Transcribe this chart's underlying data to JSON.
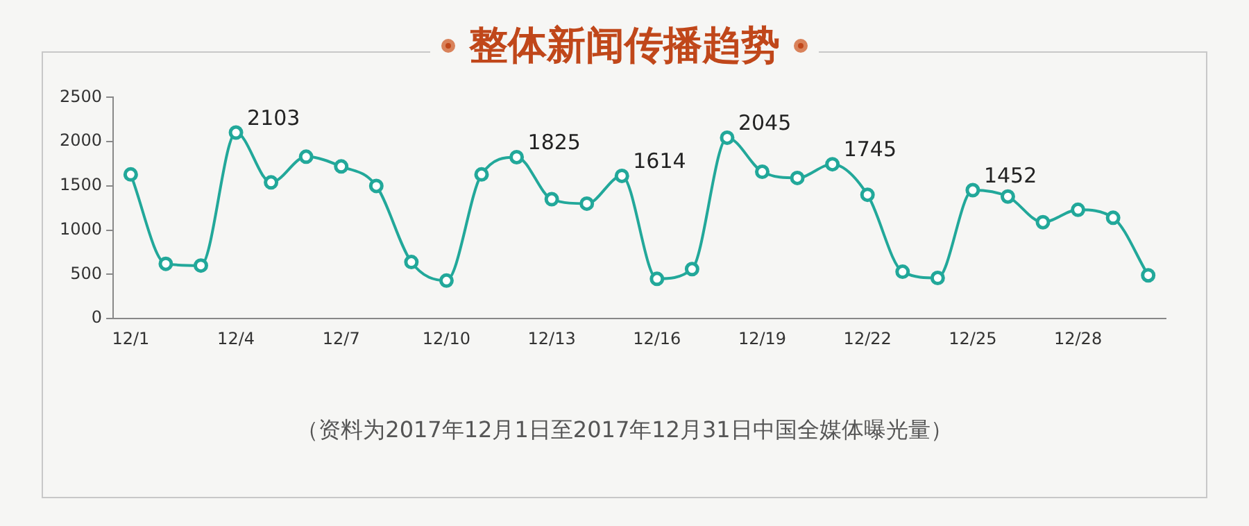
{
  "chart_data": {
    "type": "line",
    "title": "整体新闻传播趋势",
    "categories": [
      "12/1",
      null,
      null,
      "12/4",
      null,
      null,
      "12/7",
      null,
      null,
      "12/10",
      null,
      null,
      "12/13",
      null,
      null,
      "12/16",
      null,
      null,
      "12/19",
      null,
      null,
      "12/22",
      null,
      null,
      "12/25",
      null,
      null,
      "12/28",
      null,
      null
    ],
    "series": [
      {
        "color": "#22a89a",
        "values": [
          1630,
          620,
          600,
          2103,
          1540,
          1830,
          1720,
          1500,
          640,
          430,
          1630,
          1825,
          1350,
          1300,
          1614,
          450,
          560,
          2045,
          1660,
          1590,
          1745,
          1400,
          530,
          460,
          1452,
          1380,
          1090,
          1230,
          1140,
          490
        ],
        "value_labels": [
          null,
          null,
          null,
          "2103",
          null,
          null,
          null,
          null,
          null,
          null,
          null,
          "1825",
          null,
          null,
          "1614",
          null,
          null,
          "2045",
          null,
          null,
          "1745",
          null,
          null,
          null,
          "1452",
          null,
          null,
          null,
          null,
          null
        ]
      }
    ],
    "ylim": [
      0,
      2500
    ],
    "yticks": [
      0,
      500,
      1000,
      1500,
      2000,
      2500
    ],
    "grid": false,
    "legend": false,
    "marker": "circle",
    "line_style": "solid",
    "annotations": [
      "（资料为2017年12月1日至2017年12月31日中国全媒体曝光量）"
    ]
  }
}
